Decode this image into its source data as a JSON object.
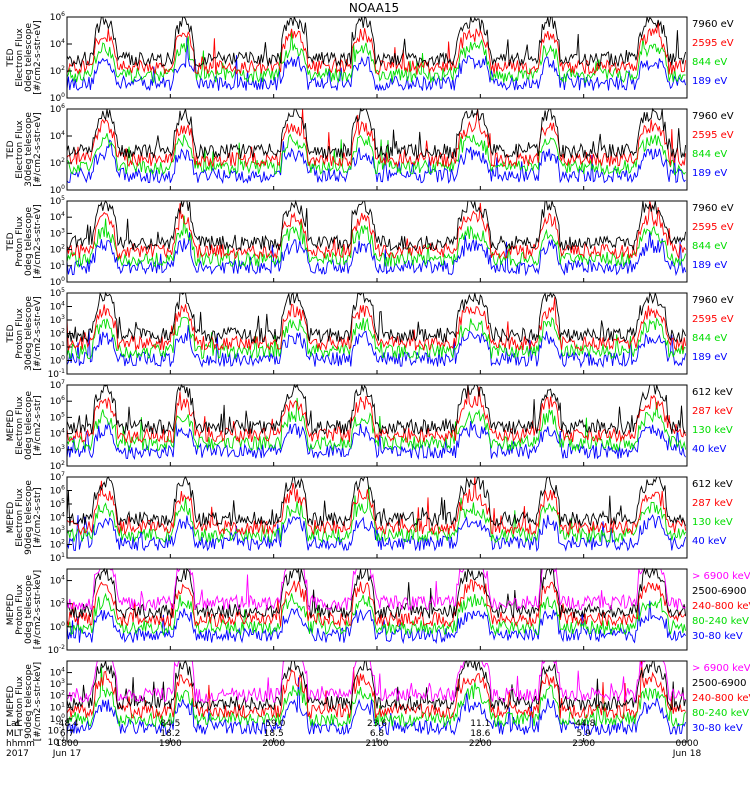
{
  "title": "NOAA15",
  "chart_data": {
    "type": "line",
    "panels": [
      {
        "ylabel": [
          "TED",
          "Electron Flux",
          "0deg telescope",
          "[#/cm2-s-str-eV]"
        ],
        "log_range": [
          0,
          6
        ],
        "ticks": [
          {
            "exp": "0",
            "v": 0
          },
          {
            "exp": "2",
            "v": 2
          },
          {
            "exp": "4",
            "v": 4
          },
          {
            "exp": "6",
            "v": 6
          }
        ],
        "series": [
          {
            "name": "7960 eV",
            "color": "#000000"
          },
          {
            "name": "2595 eV",
            "color": "#ff0000"
          },
          {
            "name": "844 eV",
            "color": "#00dd00"
          },
          {
            "name": "189 eV",
            "color": "#0000ff"
          }
        ]
      },
      {
        "ylabel": [
          "TED",
          "Electron Flux",
          "30deg telescope",
          "[#/cm2-s-str-eV]"
        ],
        "log_range": [
          0,
          6
        ],
        "ticks": [
          {
            "exp": "0",
            "v": 0
          },
          {
            "exp": "2",
            "v": 2
          },
          {
            "exp": "4",
            "v": 4
          },
          {
            "exp": "6",
            "v": 6
          }
        ],
        "series": [
          {
            "name": "7960 eV",
            "color": "#000000"
          },
          {
            "name": "2595 eV",
            "color": "#ff0000"
          },
          {
            "name": "844 eV",
            "color": "#00dd00"
          },
          {
            "name": "189 eV",
            "color": "#0000ff"
          }
        ]
      },
      {
        "ylabel": [
          "TED",
          "Proton Flux",
          "0deg telescope",
          "[#/cm2-s-str-eV]"
        ],
        "log_range": [
          0,
          5
        ],
        "ticks": [
          {
            "exp": "0",
            "v": 0
          },
          {
            "exp": "1",
            "v": 1
          },
          {
            "exp": "2",
            "v": 2
          },
          {
            "exp": "3",
            "v": 3
          },
          {
            "exp": "4",
            "v": 4
          },
          {
            "exp": "5",
            "v": 5
          }
        ],
        "series": [
          {
            "name": "7960 eV",
            "color": "#000000"
          },
          {
            "name": "2595 eV",
            "color": "#ff0000"
          },
          {
            "name": "844 eV",
            "color": "#00dd00"
          },
          {
            "name": "189 eV",
            "color": "#0000ff"
          }
        ]
      },
      {
        "ylabel": [
          "TED",
          "Proton Flux",
          "30deg telescope",
          "[#/cm2-s-str-eV]"
        ],
        "log_range": [
          -1,
          5
        ],
        "ticks": [
          {
            "exp": "-1",
            "v": -1
          },
          {
            "exp": "0",
            "v": 0
          },
          {
            "exp": "1",
            "v": 1
          },
          {
            "exp": "2",
            "v": 2
          },
          {
            "exp": "3",
            "v": 3
          },
          {
            "exp": "4",
            "v": 4
          },
          {
            "exp": "5",
            "v": 5
          }
        ],
        "series": [
          {
            "name": "7960 eV",
            "color": "#000000"
          },
          {
            "name": "2595 eV",
            "color": "#ff0000"
          },
          {
            "name": "844 eV",
            "color": "#00dd00"
          },
          {
            "name": "189 eV",
            "color": "#0000ff"
          }
        ]
      },
      {
        "ylabel": [
          "MEPED",
          "Electron Flux",
          "0deg telescope",
          "[#/cm2-s-str]"
        ],
        "log_range": [
          2,
          7
        ],
        "ticks": [
          {
            "exp": "2",
            "v": 2
          },
          {
            "exp": "3",
            "v": 3
          },
          {
            "exp": "4",
            "v": 4
          },
          {
            "exp": "5",
            "v": 5
          },
          {
            "exp": "6",
            "v": 6
          },
          {
            "exp": "7",
            "v": 7
          }
        ],
        "series": [
          {
            "name": "612 keV",
            "color": "#000000"
          },
          {
            "name": "287 keV",
            "color": "#ff0000"
          },
          {
            "name": "130 keV",
            "color": "#00dd00"
          },
          {
            "name": "40 keV",
            "color": "#0000ff"
          }
        ]
      },
      {
        "ylabel": [
          "MEPED",
          "Electron Flux",
          "90deg telescope",
          "[#/cm2-s-str]"
        ],
        "log_range": [
          1,
          7
        ],
        "ticks": [
          {
            "exp": "1",
            "v": 1
          },
          {
            "exp": "2",
            "v": 2
          },
          {
            "exp": "3",
            "v": 3
          },
          {
            "exp": "4",
            "v": 4
          },
          {
            "exp": "5",
            "v": 5
          },
          {
            "exp": "6",
            "v": 6
          },
          {
            "exp": "7",
            "v": 7
          }
        ],
        "series": [
          {
            "name": "612 keV",
            "color": "#000000"
          },
          {
            "name": "287 keV",
            "color": "#ff0000"
          },
          {
            "name": "130 keV",
            "color": "#00dd00"
          },
          {
            "name": "40 keV",
            "color": "#0000ff"
          }
        ]
      },
      {
        "ylabel": [
          "MEPED",
          "Proton Flux",
          "0deg telescope",
          "[#/cm2-s-str-keV]"
        ],
        "log_range": [
          -2,
          5
        ],
        "ticks": [
          {
            "exp": "-2",
            "v": -2
          },
          {
            "exp": "0",
            "v": 0
          },
          {
            "exp": "2",
            "v": 2
          },
          {
            "exp": "4",
            "v": 4
          }
        ],
        "series": [
          {
            "name": "> 6900 keV",
            "color": "#ff00ff"
          },
          {
            "name": "2500-6900",
            "color": "#000000"
          },
          {
            "name": "240-800 keV",
            "color": "#ff0000"
          },
          {
            "name": "80-240 keV",
            "color": "#00dd00"
          },
          {
            "name": "30-80 keV",
            "color": "#0000ff"
          }
        ]
      },
      {
        "ylabel": [
          "MEPED",
          "Proton Flux",
          "90deg telescope",
          "[#/cm2-s-str-keV]"
        ],
        "log_range": [
          -2,
          5
        ],
        "ticks": [
          {
            "exp": "-2",
            "v": -2
          },
          {
            "exp": "-1",
            "v": -1
          },
          {
            "exp": "0",
            "v": 0
          },
          {
            "exp": "1",
            "v": 1
          },
          {
            "exp": "2",
            "v": 2
          },
          {
            "exp": "3",
            "v": 3
          },
          {
            "exp": "4",
            "v": 4
          }
        ],
        "series": [
          {
            "name": "> 6900 keV",
            "color": "#ff00ff"
          },
          {
            "name": "2500-6900",
            "color": "#000000"
          },
          {
            "name": "240-800 keV",
            "color": "#ff0000"
          },
          {
            "name": "80-240 keV",
            "color": "#00dd00"
          },
          {
            "name": "30-80 keV",
            "color": "#0000ff"
          }
        ]
      }
    ],
    "x_axis": {
      "row_labels": [
        "Lat",
        "MLT",
        "hhmm",
        "2017"
      ],
      "ticks": [
        {
          "t": 0,
          "lat": "-48.4",
          "mlt": "6.7",
          "hhmm": "1800",
          "date": "Jun 17"
        },
        {
          "t": 60,
          "lat": "84.5",
          "mlt": "18.2",
          "hhmm": "1900",
          "date": ""
        },
        {
          "t": 120,
          "lat": "-59.0",
          "mlt": "18.5",
          "hhmm": "2000",
          "date": ""
        },
        {
          "t": 180,
          "lat": "23.6",
          "mlt": "6.8",
          "hhmm": "2100",
          "date": ""
        },
        {
          "t": 240,
          "lat": "11.1",
          "mlt": "18.6",
          "hhmm": "2200",
          "date": ""
        },
        {
          "t": 300,
          "lat": "-44.8",
          "mlt": "5.9",
          "hhmm": "2300",
          "date": ""
        },
        {
          "t": 360,
          "lat": "",
          "mlt": "",
          "hhmm": "0000",
          "date": "Jun 18"
        }
      ],
      "range": [
        0,
        360
      ]
    },
    "passes": [
      {
        "center": 22,
        "width": 7
      },
      {
        "center": 68,
        "width": 6
      },
      {
        "center": 132,
        "width": 8
      },
      {
        "center": 172,
        "width": 7
      },
      {
        "center": 236,
        "width": 10
      },
      {
        "center": 280,
        "width": 6
      },
      {
        "center": 340,
        "width": 9
      }
    ]
  }
}
